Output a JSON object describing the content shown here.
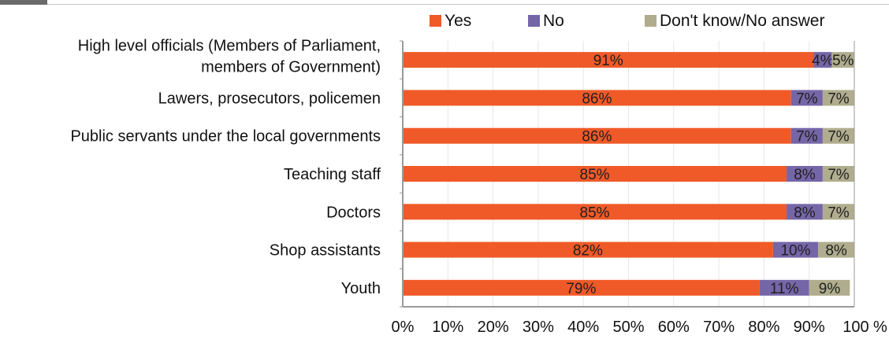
{
  "chart_data": {
    "type": "bar",
    "orientation": "horizontal",
    "stacked": true,
    "categories": [
      [
        "High level officials (Members of Parliament,",
        "members of Government)"
      ],
      [
        "Lawers, prosecutors, policemen"
      ],
      [
        "Public servants under the local governments"
      ],
      [
        "Teaching staff"
      ],
      [
        "Doctors"
      ],
      [
        "Shop assistants"
      ],
      [
        "Youth"
      ]
    ],
    "series": [
      {
        "name": "Yes",
        "color": "#f05a28",
        "values": [
          91,
          86,
          86,
          85,
          85,
          82,
          79
        ],
        "labels": [
          "91%",
          "86%",
          "86%",
          "85%",
          "85%",
          "82%",
          "79%"
        ]
      },
      {
        "name": "No",
        "color": "#7566a8",
        "values": [
          4,
          7,
          7,
          8,
          8,
          10,
          11
        ],
        "labels": [
          "4%",
          "7%",
          "7%",
          "8%",
          "8%",
          "10%",
          "11%"
        ]
      },
      {
        "name": "Don't know/No answer",
        "color": "#b0ad8e",
        "values": [
          5,
          7,
          7,
          7,
          7,
          8,
          9
        ],
        "labels": [
          "5%",
          "7%",
          "7%",
          "7%",
          "7%",
          "8%",
          "9%"
        ]
      }
    ],
    "x_ticks": [
      "0%",
      "10%",
      "20%",
      "30%",
      "40%",
      "50%",
      "60%",
      "70%",
      "80%",
      "90%",
      "100"
    ],
    "x_unit": "%",
    "xlim": [
      0,
      100
    ],
    "legend_position": "top",
    "grid": "vertical"
  }
}
